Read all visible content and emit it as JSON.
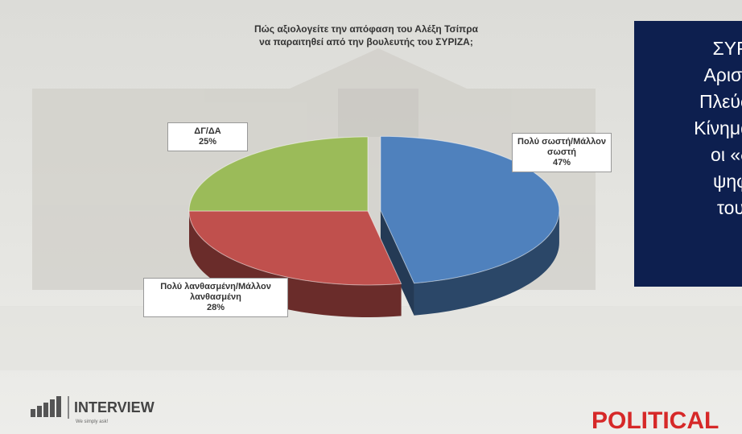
{
  "chart_data": {
    "type": "pie",
    "title": "Πώς αξιολογείτε την απόφαση του Αλέξη Τσίπρα",
    "subtitle": "να παραιτηθεί από την βουλευτής του ΣΥΡΙΖΑ;",
    "categories": [
      "Πολύ σωστή/Μάλλον σωστή",
      "Πολύ λανθασμένη/Μάλλον λανθασμένη",
      "ΔΓ/ΔΑ"
    ],
    "values": [
      47,
      28,
      25
    ],
    "value_labels": [
      "47%",
      "28%",
      "25%"
    ],
    "colors": [
      "#4f81bd",
      "#c0504d",
      "#9bbb59"
    ]
  },
  "panel": {
    "lines": [
      "ΣΥΡ",
      "Αριστε",
      "Πλεύση",
      "Κίνημα Δ",
      "οι «δ",
      "ψηφ",
      "του"
    ]
  },
  "logos": {
    "interview": "INTERVIEW",
    "slogan": "We simply ask!",
    "political": "POLITICAL"
  }
}
